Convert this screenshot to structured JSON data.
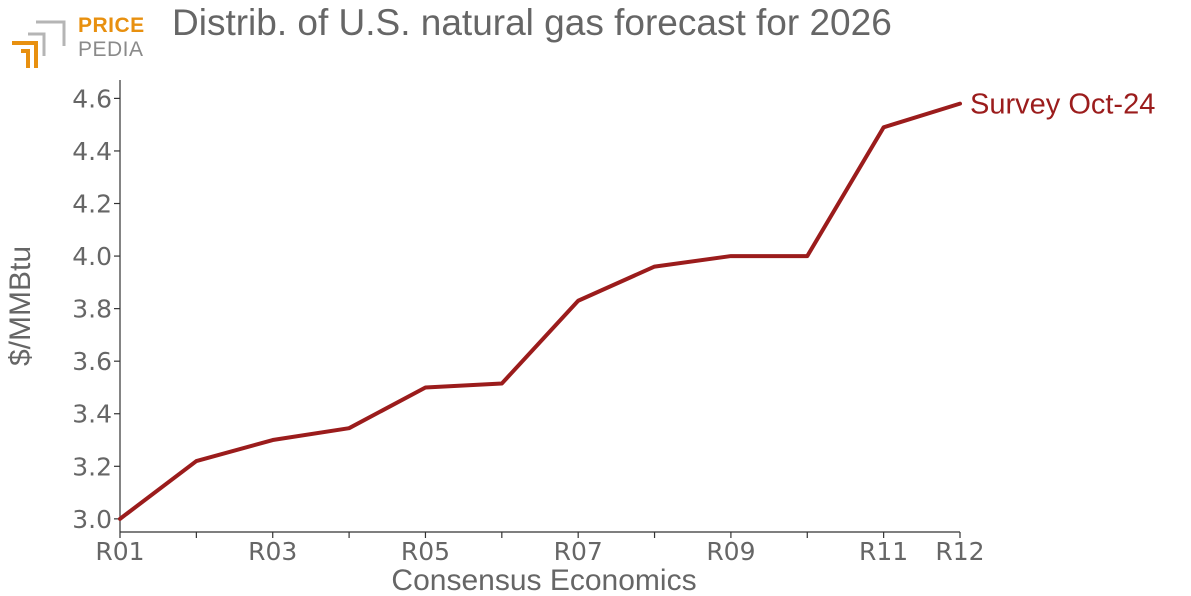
{
  "brand": {
    "line1": "PRICE",
    "line2": "PEDIA"
  },
  "chart_data": {
    "type": "line",
    "title": "Distrib. of U.S. natural gas forecast for 2026",
    "xlabel": "Consensus Economics",
    "ylabel": "$/MMBtu",
    "x": [
      "R01",
      "R02",
      "R03",
      "R04",
      "R05",
      "R06",
      "R07",
      "R08",
      "R09",
      "R10",
      "R11",
      "R12"
    ],
    "x_tick_labels": [
      "R01",
      "R03",
      "R05",
      "R07",
      "R09",
      "R11",
      "R12"
    ],
    "y_ticks": [
      "3.0",
      "3.2",
      "3.4",
      "3.6",
      "3.8",
      "4.0",
      "4.2",
      "4.4",
      "4.6"
    ],
    "ylim": [
      2.95,
      4.67
    ],
    "grid": false,
    "series": [
      {
        "name": "Survey Oct-24",
        "color": "#9b1c1c",
        "values": [
          3.0,
          3.22,
          3.3,
          3.345,
          3.5,
          3.515,
          3.83,
          3.96,
          4.0,
          4.0,
          4.49,
          4.58
        ]
      }
    ]
  }
}
